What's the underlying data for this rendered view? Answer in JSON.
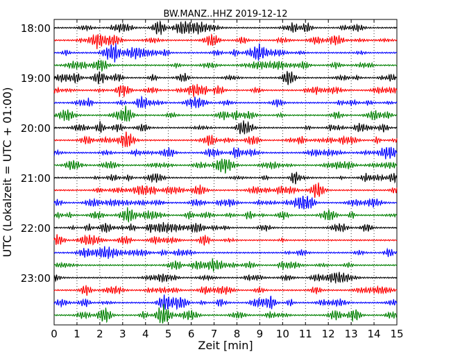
{
  "chart_data": {
    "type": "line",
    "title": "BW.MANZ..HHZ 2019-12-12",
    "xlabel": "Zeit  [min]",
    "ylabel": "UTC (Lokalzeit = UTC + 01:00)",
    "xlim": [
      0,
      15
    ],
    "x_ticks": [
      "0",
      "1",
      "2",
      "3",
      "4",
      "5",
      "6",
      "7",
      "8",
      "9",
      "10",
      "11",
      "12",
      "13",
      "14",
      "15"
    ],
    "y_ticks": [
      "18:00",
      "19:00",
      "20:00",
      "21:00",
      "22:00",
      "23:00"
    ],
    "row_start": "18:00",
    "row_interval_min": 15,
    "row_count": 24,
    "row_colors": [
      "#000000",
      "#ff0000",
      "#0000ff",
      "#008000"
    ],
    "grid": {
      "x": "dotted",
      "y": "none"
    },
    "series": [
      {
        "values": []
      }
    ]
  }
}
